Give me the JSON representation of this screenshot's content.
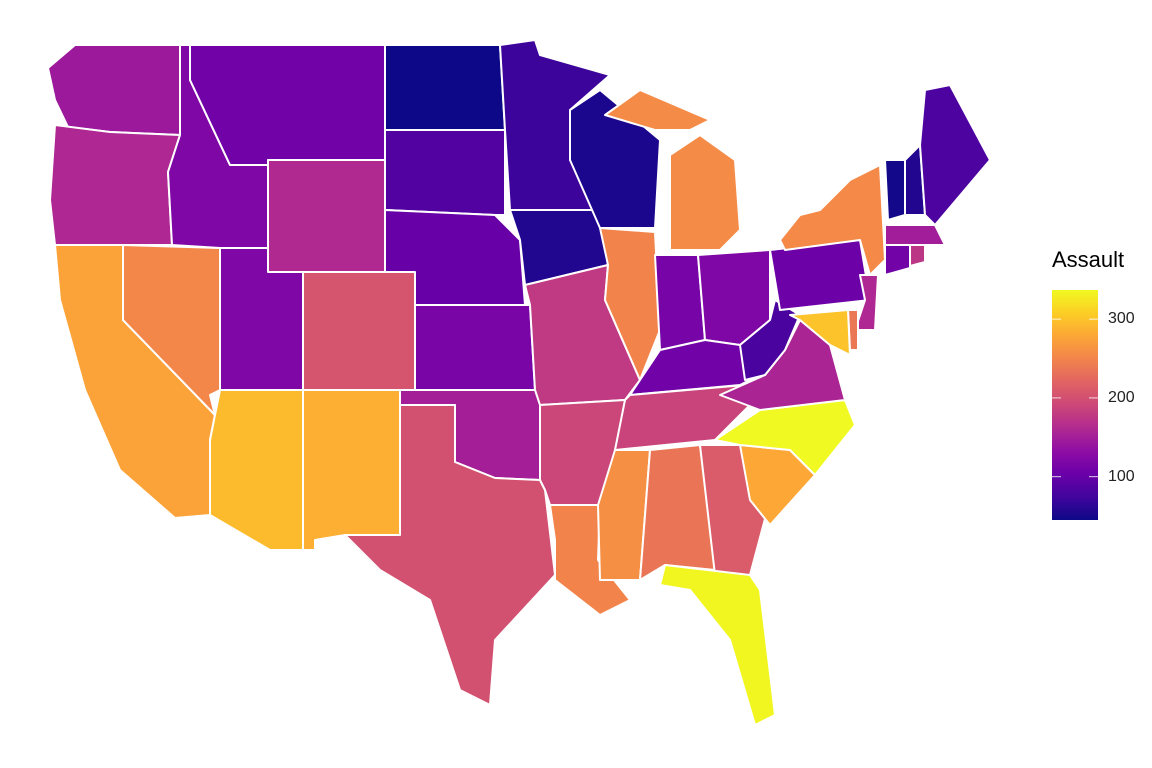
{
  "legend": {
    "title": "Assault",
    "ticks": [
      {
        "value": 100,
        "label": "100"
      },
      {
        "value": 200,
        "label": "200"
      },
      {
        "value": 300,
        "label": "300"
      }
    ],
    "range": [
      45,
      337
    ],
    "colormap": "plasma",
    "low_color": "#0d0887",
    "high_color": "#f0f921"
  },
  "border_color": "#ffffff",
  "states": {
    "washington": 145,
    "oregon": 159,
    "california": 276,
    "nevada": 252,
    "idaho": 120,
    "montana": 109,
    "wyoming": 161,
    "utah": 120,
    "arizona": 294,
    "colorado": 204,
    "new mexico": 285,
    "north dakota": 45,
    "south dakota": 86,
    "nebraska": 102,
    "kansas": 115,
    "oklahoma": 151,
    "texas": 201,
    "minnesota": 72,
    "iowa": 56,
    "missouri": 178,
    "arkansas": 190,
    "louisiana": 249,
    "wisconsin": 53,
    "illinois": 249,
    "michigan": 255,
    "indiana": 113,
    "ohio": 120,
    "kentucky": 109,
    "tennessee": 188,
    "mississippi": 259,
    "alabama": 236,
    "georgia": 211,
    "florida": 335,
    "south carolina": 279,
    "north carolina": 337,
    "virginia": 156,
    "west virginia": 81,
    "pennsylvania": 106,
    "new york": 254,
    "vermont": 48,
    "new hampshire": 57,
    "maine": 83,
    "massachusetts": 149,
    "connecticut": 110,
    "rhode island": 174,
    "new jersey": 159,
    "delaware": 238,
    "maryland": 300
  }
}
